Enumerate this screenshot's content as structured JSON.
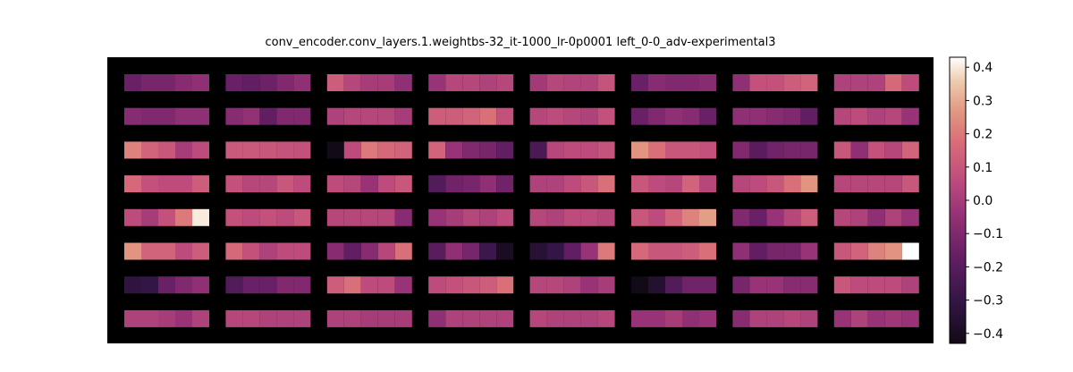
{
  "chart_data": {
    "type": "heatmap",
    "title": "conv_encoder.conv_layers.1.weightbs-32_it-1000_lr-0p0001  left_0-0_adv-experimental3",
    "grid": {
      "panel_rows": 8,
      "panel_cols": 8,
      "cells_per_panel": 5
    },
    "colormap": "flare",
    "background": "#000000",
    "colorbar": {
      "range": [
        -0.43,
        0.43
      ],
      "ticks": [
        0.4,
        0.3,
        0.2,
        0.1,
        0.0,
        -0.1,
        -0.2,
        -0.3,
        -0.4
      ],
      "tick_labels": [
        "0.4",
        "0.3",
        "0.2",
        "0.1",
        "0.0",
        "−0.1",
        "−0.2",
        "−0.3",
        "−0.4"
      ]
    },
    "values": [
      [
        [
          -0.16,
          -0.12,
          -0.12,
          -0.08,
          -0.06
        ],
        [
          -0.16,
          -0.18,
          -0.15,
          -0.1,
          -0.06
        ],
        [
          0.12,
          0.04,
          0.0,
          0.0,
          -0.06
        ],
        [
          -0.04,
          0.04,
          0.04,
          0.02,
          0.04
        ],
        [
          -0.01,
          0.04,
          0.03,
          0.03,
          0.09
        ],
        [
          -0.16,
          -0.08,
          -0.1,
          -0.1,
          -0.08
        ],
        [
          -0.06,
          0.08,
          0.08,
          0.12,
          0.14
        ],
        [
          0.02,
          0.02,
          0.02,
          0.16,
          0.06
        ]
      ],
      [
        [
          -0.08,
          -0.1,
          -0.1,
          -0.06,
          -0.06
        ],
        [
          -0.08,
          -0.05,
          -0.18,
          -0.1,
          -0.1
        ],
        [
          0.02,
          0.04,
          0.04,
          0.04,
          0.0
        ],
        [
          0.12,
          0.12,
          0.14,
          0.18,
          0.08
        ],
        [
          0.04,
          0.06,
          0.04,
          0.02,
          0.08
        ],
        [
          -0.16,
          -0.1,
          -0.06,
          -0.08,
          -0.16
        ],
        [
          -0.06,
          -0.06,
          -0.08,
          -0.1,
          -0.18
        ],
        [
          0.04,
          0.06,
          0.02,
          0.04,
          -0.04
        ]
      ],
      [
        [
          0.22,
          0.14,
          0.1,
          0.0,
          0.06
        ],
        [
          0.11,
          0.11,
          0.1,
          0.09,
          0.08
        ],
        [
          -0.43,
          0.06,
          0.2,
          0.16,
          0.14
        ],
        [
          0.14,
          -0.04,
          -0.1,
          -0.12,
          -0.18
        ],
        [
          -0.24,
          0.04,
          0.06,
          0.06,
          0.09
        ],
        [
          0.26,
          0.18,
          0.1,
          0.1,
          0.08
        ],
        [
          -0.1,
          -0.2,
          -0.14,
          -0.12,
          -0.12
        ],
        [
          0.1,
          -0.06,
          0.08,
          0.04,
          0.14
        ]
      ],
      [
        [
          0.16,
          0.08,
          0.06,
          0.06,
          0.12
        ],
        [
          0.08,
          0.04,
          0.04,
          0.1,
          0.06
        ],
        [
          0.06,
          0.04,
          -0.04,
          0.06,
          0.1
        ],
        [
          -0.22,
          -0.14,
          -0.12,
          -0.06,
          -0.14
        ],
        [
          0.02,
          0.02,
          0.06,
          0.1,
          0.18
        ],
        [
          0.1,
          0.06,
          0.04,
          0.14,
          0.04
        ],
        [
          0.04,
          0.06,
          0.1,
          0.18,
          0.26
        ],
        [
          0.04,
          0.04,
          0.04,
          0.04,
          0.1
        ]
      ],
      [
        [
          0.06,
          0.0,
          0.08,
          0.2,
          0.4
        ],
        [
          0.08,
          0.06,
          0.08,
          0.06,
          0.1
        ],
        [
          0.04,
          0.04,
          0.04,
          0.04,
          -0.08
        ],
        [
          -0.04,
          0.0,
          0.04,
          0.02,
          0.06
        ],
        [
          0.04,
          0.02,
          0.06,
          0.06,
          0.04
        ],
        [
          0.1,
          0.06,
          0.14,
          0.22,
          0.28
        ],
        [
          -0.1,
          -0.16,
          -0.04,
          0.04,
          0.12
        ],
        [
          0.04,
          0.02,
          -0.06,
          0.02,
          -0.04
        ]
      ],
      [
        [
          0.26,
          0.14,
          0.14,
          0.06,
          0.12
        ],
        [
          0.16,
          0.08,
          0.02,
          0.06,
          0.06
        ],
        [
          -0.08,
          -0.18,
          -0.08,
          0.04,
          0.18
        ],
        [
          -0.2,
          -0.06,
          -0.12,
          -0.28,
          -0.4
        ],
        [
          -0.35,
          -0.3,
          -0.18,
          -0.04,
          0.2
        ],
        [
          0.16,
          0.1,
          0.1,
          0.12,
          0.18
        ],
        [
          -0.06,
          -0.18,
          -0.12,
          -0.12,
          -0.04
        ],
        [
          0.1,
          0.14,
          0.22,
          0.26,
          0.43
        ]
      ],
      [
        [
          -0.32,
          -0.3,
          -0.16,
          -0.1,
          -0.06
        ],
        [
          -0.22,
          -0.16,
          -0.16,
          -0.1,
          -0.1
        ],
        [
          0.12,
          0.18,
          0.06,
          0.06,
          -0.04
        ],
        [
          0.06,
          0.08,
          0.1,
          0.12,
          0.18
        ],
        [
          0.04,
          0.04,
          0.02,
          -0.04,
          0.0
        ],
        [
          -0.43,
          -0.36,
          -0.22,
          -0.14,
          -0.14
        ],
        [
          -0.12,
          -0.04,
          -0.04,
          -0.08,
          -0.08
        ],
        [
          0.1,
          0.06,
          0.06,
          0.06,
          0.02
        ]
      ],
      [
        [
          0.02,
          0.02,
          0.0,
          -0.04,
          0.02
        ],
        [
          0.04,
          0.04,
          0.02,
          0.02,
          0.02
        ],
        [
          0.02,
          0.02,
          0.0,
          0.0,
          0.0
        ],
        [
          -0.06,
          0.02,
          0.02,
          0.02,
          0.02
        ],
        [
          0.04,
          0.02,
          0.02,
          0.02,
          0.04
        ],
        [
          -0.04,
          -0.04,
          0.0,
          -0.06,
          -0.04
        ],
        [
          -0.08,
          0.02,
          0.02,
          0.04,
          0.02
        ],
        [
          -0.04,
          0.02,
          -0.04,
          -0.02,
          -0.04
        ]
      ]
    ]
  }
}
